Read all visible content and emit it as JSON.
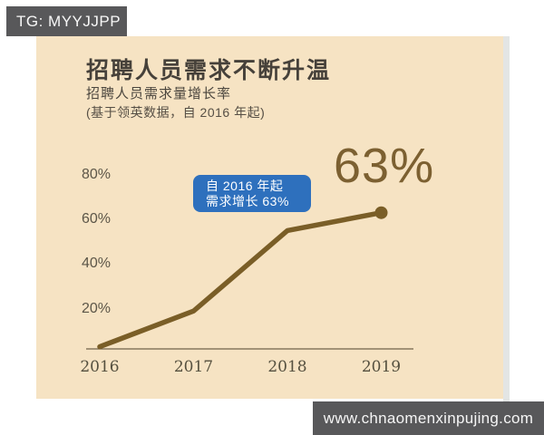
{
  "badge": {
    "text": "TG: MYYJJPP"
  },
  "header": {
    "title": "招聘人员需求不断升温",
    "subtitle": "招聘人员需求量增长率",
    "source_note": "(基于领英数据，自 2016 年起)"
  },
  "callout": {
    "line1": "自 2016 年起",
    "line2": "需求增长 63%"
  },
  "endpoint_label": "63%",
  "footer": {
    "url": "www.chnaomenxinpujing.com"
  },
  "colors": {
    "card_background": "#f6e3c3",
    "line": "#7a5e27",
    "endpoint_text": "#7c6031",
    "callout_background": "#2e70bd",
    "badge_background": "#58585a",
    "footer_background": "#58585a",
    "axis_line": "#71624a"
  },
  "chart_data": {
    "type": "line",
    "title": "招聘人员需求不断升温",
    "subtitle": "招聘人员需求量增长率",
    "source": "(基于领英数据，自 2016 年起)",
    "categories": [
      "2016",
      "2017",
      "2018",
      "2019"
    ],
    "values": [
      3,
      19,
      55,
      63
    ],
    "yticks_percent": [
      20,
      40,
      60,
      80
    ],
    "ylim": [
      0,
      90
    ],
    "xlabel": "",
    "ylabel": "",
    "grid": false,
    "legend": false,
    "line_color": "#7a5e27",
    "end_point_label": "63%",
    "annotation": "自 2016 年起需求增长 63%"
  }
}
